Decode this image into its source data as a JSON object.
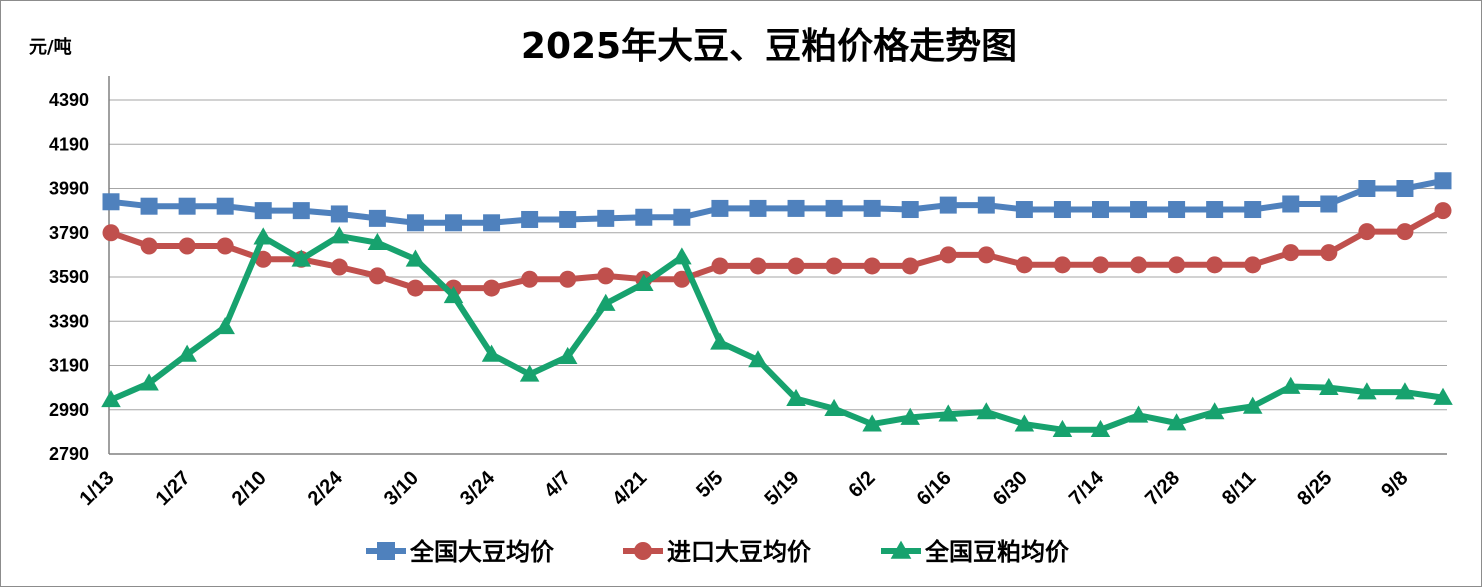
{
  "chart_data": {
    "type": "line",
    "title": "2025年大豆、豆粕价格走势图",
    "ylabel": "元/吨",
    "xlabel": "",
    "ylim": [
      2790,
      4390
    ],
    "yticks": [
      2790,
      2990,
      3190,
      3390,
      3590,
      3790,
      3990,
      4190,
      4390
    ],
    "grid": true,
    "legend_position": "bottom",
    "x": [
      "1/13",
      "1/20",
      "1/27",
      "2/3",
      "2/10",
      "2/17",
      "2/24",
      "3/3",
      "3/10",
      "3/17",
      "3/24",
      "3/31",
      "4/7",
      "4/14",
      "4/21",
      "4/28",
      "5/5",
      "5/12",
      "5/19",
      "5/26",
      "6/2",
      "6/9",
      "6/16",
      "6/23",
      "6/30",
      "7/7",
      "7/14",
      "7/21",
      "7/28",
      "8/4",
      "8/11",
      "8/18",
      "8/25",
      "9/1",
      "9/8",
      "9/15"
    ],
    "x_tick_labels": [
      "1/13",
      "1/27",
      "2/10",
      "2/24",
      "3/10",
      "3/24",
      "4/7",
      "4/21",
      "5/5",
      "5/19",
      "6/2",
      "6/16",
      "6/30",
      "7/14",
      "7/28",
      "8/11",
      "8/25",
      "9/8"
    ],
    "series": [
      {
        "name": "全国大豆均价",
        "color": "#4f81bd",
        "marker": "square",
        "values": [
          3930,
          3910,
          3910,
          3910,
          3890,
          3890,
          3875,
          3855,
          3835,
          3835,
          3835,
          3850,
          3850,
          3855,
          3860,
          3860,
          3900,
          3900,
          3900,
          3900,
          3900,
          3895,
          3915,
          3915,
          3895,
          3895,
          3895,
          3895,
          3895,
          3895,
          3895,
          3920,
          3920,
          3990,
          3990,
          4025
        ]
      },
      {
        "name": "进口大豆均价",
        "color": "#c0504d",
        "marker": "circle",
        "values": [
          3790,
          3730,
          3730,
          3730,
          3670,
          3670,
          3635,
          3595,
          3540,
          3540,
          3540,
          3580,
          3580,
          3595,
          3580,
          3580,
          3640,
          3640,
          3640,
          3640,
          3640,
          3640,
          3690,
          3690,
          3645,
          3645,
          3645,
          3645,
          3645,
          3645,
          3645,
          3700,
          3700,
          3795,
          3795,
          3890
        ]
      },
      {
        "name": "全国豆粕均价",
        "color": "#17a26e",
        "marker": "triangle",
        "values": [
          3035,
          3110,
          3240,
          3365,
          3770,
          3670,
          3775,
          3745,
          3670,
          3505,
          3240,
          3150,
          3230,
          3470,
          3560,
          3680,
          3295,
          3215,
          3040,
          2995,
          2925,
          2955,
          2970,
          2980,
          2925,
          2900,
          2900,
          2965,
          2930,
          2980,
          3005,
          3095,
          3090,
          3070,
          3070,
          3045
        ]
      }
    ]
  }
}
